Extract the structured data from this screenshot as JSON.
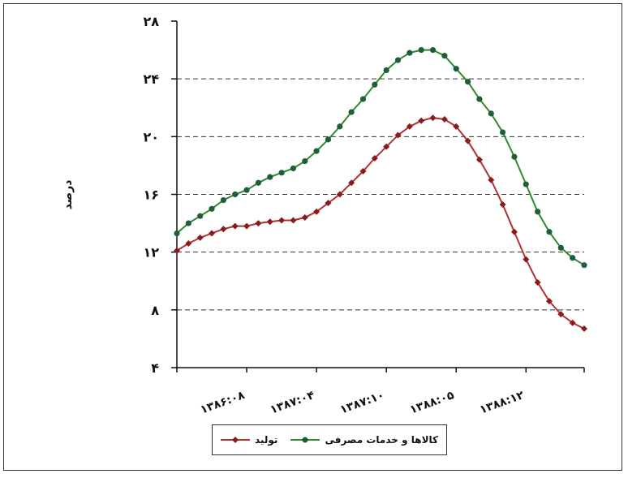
{
  "chart_data": {
    "type": "line",
    "ylabel": "درصد",
    "ylim": [
      4,
      28
    ],
    "y_ticks": [
      "۴",
      "۸",
      "۱۲",
      "۱۶",
      "۲۰",
      "۲۴",
      "۲۸"
    ],
    "y_tick_values": [
      4,
      8,
      12,
      16,
      20,
      24,
      28
    ],
    "x_ticks": [
      "۱۳۸۶:۰۸",
      "۱۳۸۷:۰۴",
      "۱۳۸۷:۱۰",
      "۱۳۸۸:۰۵",
      "۱۳۸۸:۱۲"
    ],
    "x_tick_index": [
      5,
      11,
      17,
      23,
      29
    ],
    "grid": "horizontal-dashed",
    "legend_position": "bottom",
    "series": [
      {
        "name": "کالاها و خدمات مصرفی",
        "color": "#2e8b2e",
        "marker_color": "#1e5e3a",
        "values": [
          13.3,
          14.0,
          14.5,
          15.0,
          15.6,
          16.0,
          16.3,
          16.8,
          17.2,
          17.5,
          17.8,
          18.3,
          19.0,
          19.8,
          20.7,
          21.7,
          22.6,
          23.6,
          24.6,
          25.3,
          25.8,
          26.0,
          26.0,
          25.6,
          24.7,
          23.8,
          22.6,
          21.6,
          20.3,
          18.6,
          16.7,
          14.8,
          13.4,
          12.3,
          11.6,
          11.1
        ]
      },
      {
        "name": "تولید",
        "color": "#b23232",
        "marker_color": "#8b1a1a",
        "values": [
          12.1,
          12.6,
          13.0,
          13.3,
          13.6,
          13.8,
          13.8,
          14.0,
          14.1,
          14.2,
          14.2,
          14.4,
          14.8,
          15.4,
          16.0,
          16.8,
          17.6,
          18.5,
          19.3,
          20.1,
          20.7,
          21.1,
          21.3,
          21.2,
          20.7,
          19.7,
          18.4,
          17.0,
          15.3,
          13.4,
          11.5,
          9.9,
          8.6,
          7.7,
          7.1,
          6.7
        ]
      }
    ]
  }
}
